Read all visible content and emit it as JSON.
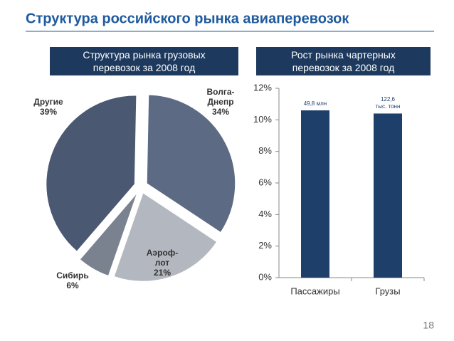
{
  "title": "Структура российского рынка авиаперевозок",
  "page_number": "18",
  "chart_data": [
    {
      "type": "pie",
      "title": "Структура рынка грузовых\nперевозок за 2008 год",
      "categories": [
        "Волга-\nДнепр",
        "Аэроф-\nлот",
        "Сибирь",
        "Другие"
      ],
      "values": [
        34,
        21,
        6,
        39
      ],
      "value_labels": [
        "34%",
        "21%",
        "6%",
        "39%"
      ],
      "colors": [
        "#5c6a84",
        "#b3b8c0",
        "#7a8290",
        "#4b5872"
      ]
    },
    {
      "type": "bar",
      "title": "Рост рынка чартерных\nперевозок за 2008 год",
      "categories": [
        "Пассажиры",
        "Грузы"
      ],
      "values": [
        10.6,
        10.4
      ],
      "annotations": [
        "49,8 млн",
        "122,6\nтыс. тонн"
      ],
      "color": "#1f3f6b",
      "ylim": [
        0,
        12
      ],
      "yticks": [
        {
          "value": 0,
          "label": "0%"
        },
        {
          "value": 2,
          "label": "2%"
        },
        {
          "value": 4,
          "label": "4%"
        },
        {
          "value": 6,
          "label": "6%"
        },
        {
          "value": 8,
          "label": "8%"
        },
        {
          "value": 10,
          "label": "10%"
        },
        {
          "value": 12,
          "label": "12%"
        }
      ]
    }
  ]
}
